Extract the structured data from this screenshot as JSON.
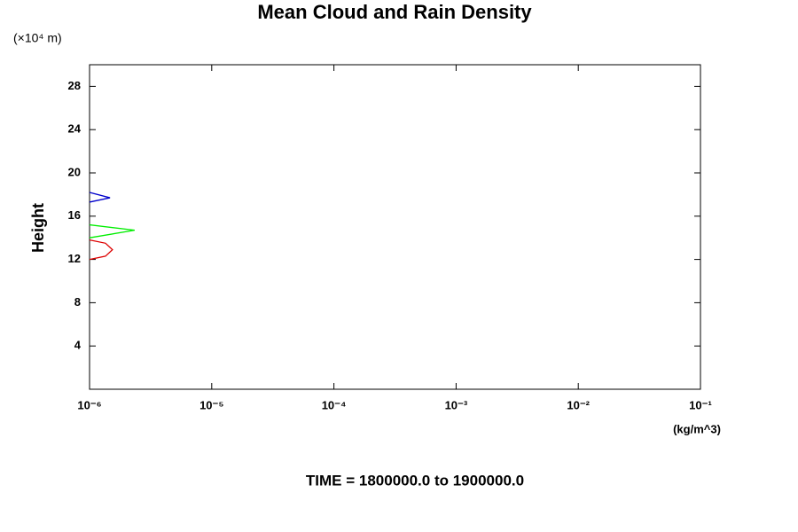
{
  "chart_data": {
    "type": "line",
    "title": "Mean Cloud and Rain Density",
    "y_label": "Height",
    "y_unit": "(×10⁴ m)",
    "x_unit": "(kg/m^3)",
    "footer": "TIME = 1800000.0 to 1900000.0",
    "x_scale": "log",
    "xlim": [
      1e-06,
      0.1
    ],
    "xticks": [
      {
        "value": 1e-06,
        "label": "10⁻⁶"
      },
      {
        "value": 1e-05,
        "label": "10⁻⁵"
      },
      {
        "value": 0.0001,
        "label": "10⁻⁴"
      },
      {
        "value": 0.001,
        "label": "10⁻³"
      },
      {
        "value": 0.01,
        "label": "10⁻²"
      },
      {
        "value": 0.1,
        "label": "10⁻¹"
      }
    ],
    "ylim": [
      0,
      30
    ],
    "yticks": [
      4,
      8,
      12,
      16,
      20,
      24,
      28
    ],
    "series": [
      {
        "color": "#0000cc",
        "x": [
          1e-06,
          1.47e-06,
          1e-06
        ],
        "y": [
          18.2,
          17.7,
          17.3
        ]
      },
      {
        "color": "#00ee00",
        "x": [
          1e-06,
          2.34e-06,
          1e-06
        ],
        "y": [
          15.2,
          14.7,
          14.0
        ]
      },
      {
        "color": "#dd0000",
        "x": [
          1e-06,
          1.35e-06,
          1.54e-06,
          1.35e-06,
          1e-06
        ],
        "y": [
          13.8,
          13.5,
          12.9,
          12.3,
          12.0
        ]
      }
    ]
  }
}
